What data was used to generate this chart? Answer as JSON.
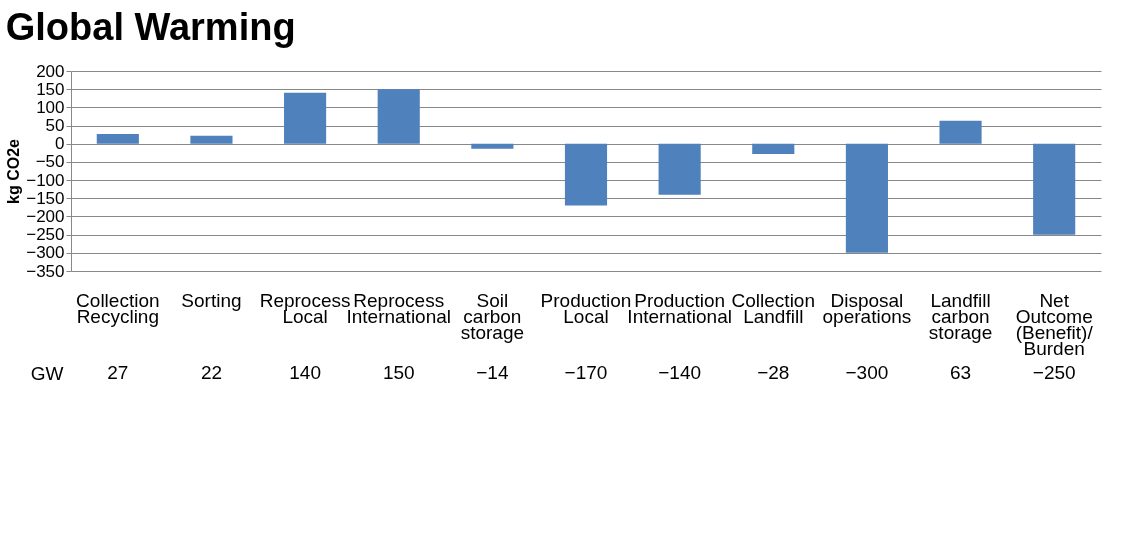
{
  "chart_data": {
    "type": "bar",
    "title": "Global Warming",
    "ylabel": "kg CO2e",
    "categories": [
      "Collection Recycling",
      "Sorting",
      "Reprocess Local",
      "Reprocess International",
      "Soil carbon storage",
      "Production Local",
      "Production International",
      "Collection Landfill",
      "Disposal operations",
      "Landfill carbon storage",
      "Net Outcome (Benefit)/ Burden"
    ],
    "series": [
      {
        "name": "GW",
        "color": "#4f81bd",
        "values": [
          27,
          22,
          140,
          150,
          -14,
          -170,
          -140,
          -28,
          -300,
          63,
          -250
        ]
      }
    ],
    "ylim": [
      -350,
      200
    ],
    "yticks": [
      -350,
      -300,
      -250,
      -200,
      -150,
      -100,
      -50,
      0,
      50,
      100,
      150,
      200
    ],
    "grid": "y",
    "data_labels": true
  }
}
